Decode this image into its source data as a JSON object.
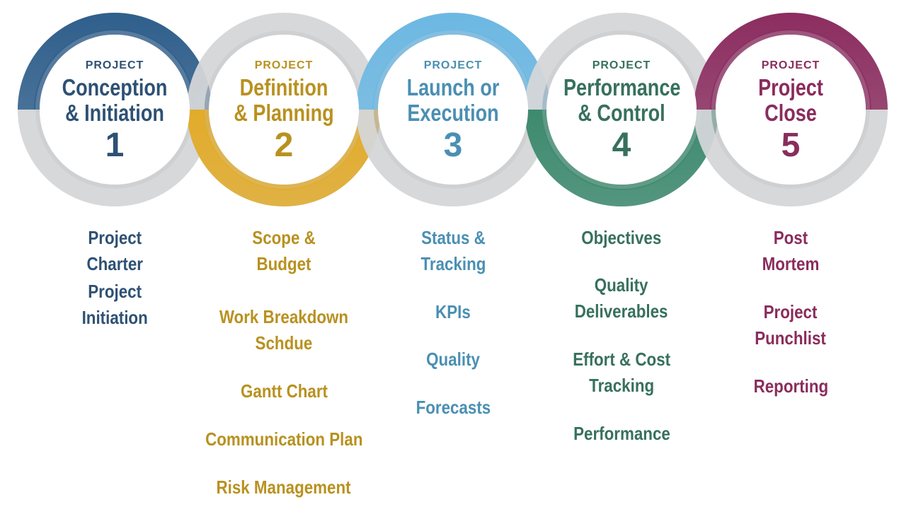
{
  "phases": [
    {
      "kicker": "PROJECT",
      "title_line1": "Conception",
      "title_line2": "& Initiation",
      "number": "1",
      "color": "#2e5174",
      "ring_color": "#2f5f8c",
      "items": [
        "Project\nCharter",
        "Project\nInitiation"
      ]
    },
    {
      "kicker": "PROJECT",
      "title_line1": "Definition",
      "title_line2": "& Planning",
      "number": "2",
      "color": "#b8911f",
      "ring_color": "#e2ab2a",
      "items": [
        "Scope &\nBudget",
        "Work Breakdown\nSchdue",
        "Gantt Chart",
        "Communication Plan",
        "Risk Management"
      ]
    },
    {
      "kicker": "PROJECT",
      "title_line1": "Launch or",
      "title_line2": "Execution",
      "number": "3",
      "color": "#4a8fb3",
      "ring_color": "#6cb8e3",
      "items": [
        "Status &\nTracking",
        "KPIs",
        "Quality",
        "Forecasts"
      ]
    },
    {
      "kicker": "PROJECT",
      "title_line1": "Performance",
      "title_line2": "& Control",
      "number": "4",
      "color": "#37705e",
      "ring_color": "#3d8a6f",
      "items": [
        "Objectives",
        "Quality\nDeliverables",
        "Effort & Cost\nTracking",
        "Performance"
      ]
    },
    {
      "kicker": "PROJECT",
      "title_line1": "Project",
      "title_line2": "Close",
      "number": "5",
      "color": "#8a2c5c",
      "ring_color": "#8c2d60",
      "items": [
        "Post\nMortem",
        "Project\nPunchlist",
        "Reporting"
      ]
    }
  ]
}
